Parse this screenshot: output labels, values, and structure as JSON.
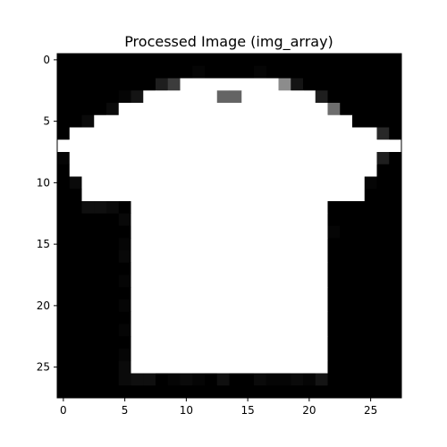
{
  "figure": {
    "title": "Processed Image (img_array)",
    "colormap": "gray",
    "x_ticks": [
      "0",
      "5",
      "10",
      "15",
      "20",
      "25"
    ],
    "y_ticks": [
      "0",
      "5",
      "10",
      "15",
      "20",
      "25"
    ]
  },
  "image": {
    "rows": 28,
    "cols": 28,
    "value_scale": "0-255 grayscale",
    "pixels": [
      [
        0,
        0,
        0,
        0,
        0,
        0,
        0,
        0,
        0,
        0,
        0,
        0,
        0,
        0,
        0,
        0,
        0,
        0,
        0,
        0,
        0,
        0,
        0,
        0,
        0,
        0,
        0,
        0
      ],
      [
        0,
        0,
        0,
        0,
        0,
        0,
        0,
        0,
        0,
        0,
        0,
        5,
        0,
        0,
        0,
        0,
        5,
        0,
        0,
        0,
        0,
        0,
        0,
        0,
        0,
        0,
        0,
        0
      ],
      [
        0,
        0,
        0,
        0,
        0,
        0,
        0,
        0,
        30,
        60,
        255,
        255,
        255,
        255,
        255,
        255,
        255,
        255,
        140,
        20,
        0,
        0,
        0,
        0,
        0,
        0,
        0,
        0
      ],
      [
        0,
        0,
        0,
        0,
        0,
        5,
        20,
        255,
        255,
        255,
        255,
        255,
        255,
        100,
        100,
        255,
        255,
        255,
        255,
        255,
        255,
        30,
        0,
        0,
        0,
        0,
        0,
        0
      ],
      [
        0,
        0,
        0,
        0,
        10,
        255,
        255,
        255,
        255,
        255,
        255,
        255,
        255,
        255,
        255,
        255,
        255,
        255,
        255,
        255,
        255,
        255,
        110,
        0,
        0,
        0,
        0,
        0
      ],
      [
        0,
        0,
        10,
        255,
        255,
        255,
        255,
        255,
        255,
        255,
        255,
        255,
        255,
        255,
        255,
        255,
        255,
        255,
        255,
        255,
        255,
        255,
        255,
        255,
        0,
        0,
        0,
        0
      ],
      [
        0,
        255,
        255,
        255,
        255,
        255,
        255,
        255,
        255,
        255,
        255,
        255,
        255,
        255,
        255,
        255,
        255,
        255,
        255,
        255,
        255,
        255,
        255,
        255,
        255,
        255,
        40,
        0
      ],
      [
        255,
        255,
        255,
        255,
        255,
        255,
        255,
        255,
        255,
        255,
        255,
        255,
        255,
        255,
        255,
        255,
        255,
        255,
        255,
        255,
        255,
        255,
        255,
        255,
        255,
        255,
        255,
        255
      ],
      [
        5,
        255,
        255,
        255,
        255,
        255,
        255,
        255,
        255,
        255,
        255,
        255,
        255,
        255,
        255,
        255,
        255,
        255,
        255,
        255,
        255,
        255,
        255,
        255,
        255,
        255,
        30,
        0
      ],
      [
        0,
        255,
        255,
        255,
        255,
        255,
        255,
        255,
        255,
        255,
        255,
        255,
        255,
        255,
        255,
        255,
        255,
        255,
        255,
        255,
        255,
        255,
        255,
        255,
        255,
        255,
        0,
        0
      ],
      [
        0,
        10,
        255,
        255,
        255,
        255,
        255,
        255,
        255,
        255,
        255,
        255,
        255,
        255,
        255,
        255,
        255,
        255,
        255,
        255,
        255,
        255,
        255,
        255,
        255,
        5,
        0,
        0
      ],
      [
        0,
        0,
        255,
        255,
        255,
        255,
        255,
        255,
        255,
        255,
        255,
        255,
        255,
        255,
        255,
        255,
        255,
        255,
        255,
        255,
        255,
        255,
        255,
        255,
        255,
        0,
        0,
        0
      ],
      [
        0,
        0,
        15,
        15,
        10,
        0,
        255,
        255,
        255,
        255,
        255,
        255,
        255,
        255,
        255,
        255,
        255,
        255,
        255,
        255,
        255,
        255,
        0,
        0,
        0,
        0,
        0,
        0
      ],
      [
        0,
        0,
        0,
        0,
        0,
        8,
        255,
        255,
        255,
        255,
        255,
        255,
        255,
        255,
        255,
        255,
        255,
        255,
        255,
        255,
        255,
        255,
        0,
        0,
        0,
        0,
        0,
        0
      ],
      [
        0,
        0,
        0,
        0,
        0,
        0,
        255,
        255,
        255,
        255,
        255,
        255,
        255,
        255,
        255,
        255,
        255,
        255,
        255,
        255,
        255,
        255,
        5,
        0,
        0,
        0,
        0,
        0
      ],
      [
        0,
        0,
        0,
        0,
        0,
        5,
        255,
        255,
        255,
        255,
        255,
        255,
        255,
        255,
        255,
        255,
        255,
        255,
        255,
        255,
        255,
        255,
        0,
        0,
        0,
        0,
        0,
        0
      ],
      [
        0,
        0,
        0,
        0,
        0,
        8,
        255,
        255,
        255,
        255,
        255,
        255,
        255,
        255,
        255,
        255,
        255,
        255,
        255,
        255,
        255,
        255,
        0,
        0,
        0,
        0,
        0,
        0
      ],
      [
        0,
        0,
        0,
        0,
        0,
        0,
        255,
        255,
        255,
        255,
        255,
        255,
        255,
        255,
        255,
        255,
        255,
        255,
        255,
        255,
        255,
        255,
        0,
        0,
        0,
        0,
        0,
        0
      ],
      [
        0,
        0,
        0,
        0,
        0,
        5,
        255,
        255,
        255,
        255,
        255,
        255,
        255,
        255,
        255,
        255,
        255,
        255,
        255,
        255,
        255,
        255,
        0,
        0,
        0,
        0,
        0,
        0
      ],
      [
        0,
        0,
        0,
        0,
        0,
        0,
        255,
        255,
        255,
        255,
        255,
        255,
        255,
        255,
        255,
        255,
        255,
        255,
        255,
        255,
        255,
        255,
        0,
        0,
        0,
        0,
        0,
        0
      ],
      [
        0,
        0,
        0,
        0,
        0,
        5,
        255,
        255,
        255,
        255,
        255,
        255,
        255,
        255,
        255,
        255,
        255,
        255,
        255,
        255,
        255,
        255,
        0,
        0,
        0,
        0,
        0,
        0
      ],
      [
        0,
        0,
        0,
        0,
        0,
        0,
        255,
        255,
        255,
        255,
        255,
        255,
        255,
        255,
        255,
        255,
        255,
        255,
        255,
        255,
        255,
        255,
        0,
        0,
        0,
        0,
        0,
        0
      ],
      [
        0,
        0,
        0,
        0,
        0,
        5,
        255,
        255,
        255,
        255,
        255,
        255,
        255,
        255,
        255,
        255,
        255,
        255,
        255,
        255,
        255,
        255,
        0,
        0,
        0,
        0,
        0,
        0
      ],
      [
        0,
        0,
        0,
        0,
        0,
        0,
        255,
        255,
        255,
        255,
        255,
        255,
        255,
        255,
        255,
        255,
        255,
        255,
        255,
        255,
        255,
        255,
        0,
        0,
        0,
        0,
        0,
        0
      ],
      [
        0,
        0,
        0,
        0,
        0,
        5,
        255,
        255,
        255,
        255,
        255,
        255,
        255,
        255,
        255,
        255,
        255,
        255,
        255,
        255,
        255,
        255,
        0,
        0,
        0,
        0,
        0,
        0
      ],
      [
        0,
        0,
        0,
        0,
        0,
        10,
        255,
        255,
        255,
        255,
        255,
        255,
        255,
        255,
        255,
        255,
        255,
        255,
        255,
        255,
        255,
        255,
        0,
        0,
        0,
        0,
        0,
        0
      ],
      [
        0,
        0,
        0,
        0,
        0,
        10,
        15,
        15,
        0,
        5,
        10,
        5,
        0,
        15,
        0,
        0,
        10,
        5,
        5,
        10,
        5,
        20,
        0,
        0,
        0,
        0,
        0,
        0
      ],
      [
        0,
        0,
        0,
        0,
        0,
        0,
        0,
        0,
        0,
        0,
        0,
        0,
        0,
        0,
        0,
        0,
        0,
        0,
        0,
        0,
        0,
        0,
        0,
        0,
        0,
        0,
        0,
        0
      ]
    ]
  }
}
